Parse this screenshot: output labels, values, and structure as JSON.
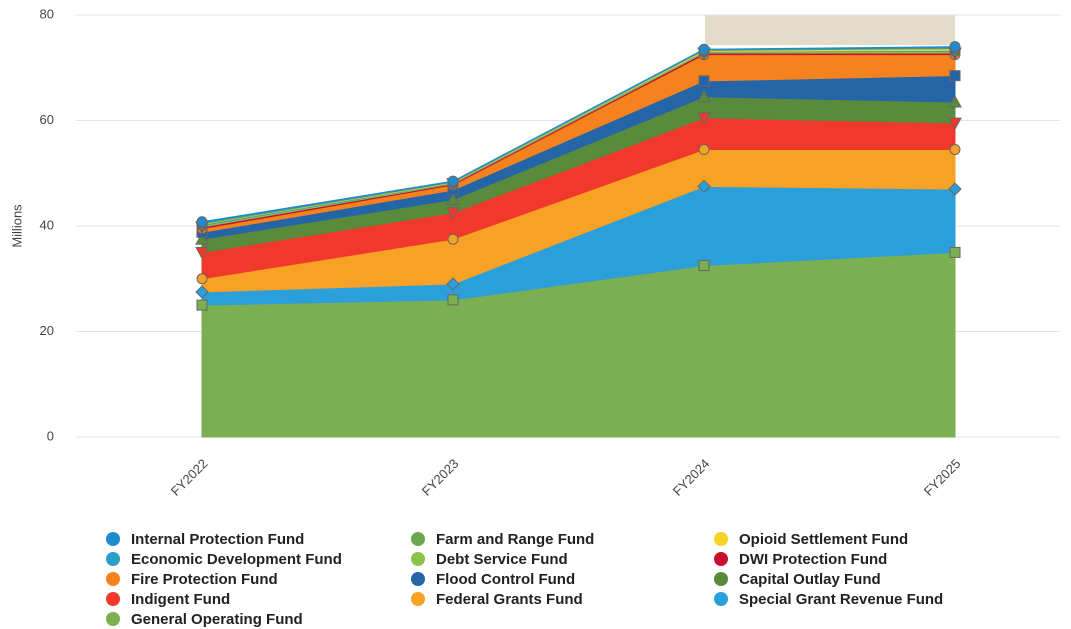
{
  "chart_data": {
    "type": "area",
    "stacked": true,
    "y_label": "Millions",
    "categories": [
      "FY2022",
      "FY2023",
      "FY2024",
      "FY2025"
    ],
    "ylim": [
      0,
      80
    ],
    "yticks": [
      0,
      20,
      40,
      60,
      80
    ],
    "grid": true,
    "series": [
      {
        "name": "Internal Protection Fund",
        "color": "#1f8ccf",
        "marker": "circle",
        "values": [
          0.2,
          0.1,
          0.1,
          0.2
        ]
      },
      {
        "name": "Farm and Range Fund",
        "color": "#6aa84f",
        "marker": "circle",
        "values": [
          0.2,
          0.1,
          0.1,
          0.2
        ]
      },
      {
        "name": "Opioid Settlement Fund",
        "color": "#f5d327",
        "marker": "circle",
        "values": [
          0.1,
          0.1,
          0.2,
          0.3
        ]
      },
      {
        "name": "Economic Development Fund",
        "color": "#2aa0c8",
        "marker": "circle",
        "values": [
          0.2,
          0.1,
          0.1,
          0.2
        ]
      },
      {
        "name": "Debt Service Fund",
        "color": "#8bc34a",
        "marker": "circle",
        "values": [
          0.3,
          0.1,
          0.2,
          0.3
        ]
      },
      {
        "name": "DWI Protection Fund",
        "color": "#c8102e",
        "marker": "triangle-down",
        "values": [
          0.3,
          0.2,
          0.3,
          0.3
        ]
      },
      {
        "name": "Fire Protection Fund",
        "color": "#f5821f",
        "marker": "circle",
        "values": [
          0.7,
          1,
          5,
          4
        ]
      },
      {
        "name": "Flood Control Fund",
        "color": "#2465a8",
        "marker": "square",
        "values": [
          1.3,
          1.8,
          3,
          5
        ]
      },
      {
        "name": "Capital Outlay Fund",
        "color": "#5a8a3c",
        "marker": "triangle",
        "values": [
          2.5,
          2.5,
          4,
          4
        ]
      },
      {
        "name": "Indigent Fund",
        "color": "#f0392b",
        "marker": "triangle-down",
        "values": [
          5,
          5,
          6,
          5
        ]
      },
      {
        "name": "Federal Grants Fund",
        "color": "#f7a125",
        "marker": "circle",
        "values": [
          2.5,
          8.5,
          7,
          7.5
        ]
      },
      {
        "name": "Special Grant Revenue Fund",
        "color": "#2b9fd9",
        "marker": "diamond",
        "values": [
          2.5,
          3,
          15,
          12
        ]
      },
      {
        "name": "General Operating Fund",
        "color": "#7cae52",
        "marker": "square",
        "values": [
          25,
          26,
          32.5,
          35
        ]
      }
    ]
  }
}
